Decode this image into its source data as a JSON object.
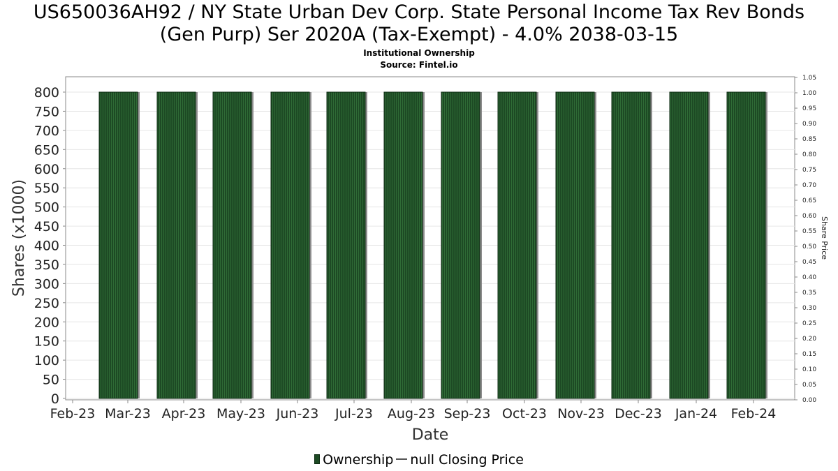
{
  "header": {
    "title_line1": "US650036AH92 / NY State Urban Dev Corp. State Personal Income Tax Rev Bonds",
    "title_line2": "(Gen Purp) Ser 2020A (Tax-Exempt) - 4.0% 2038-03-15",
    "subtitle": "Institutional Ownership",
    "source": "Source: Fintel.io"
  },
  "legend": {
    "ownership": "Ownership",
    "price": "null Closing Price"
  },
  "colors": {
    "bar_fill": "#1d4a24",
    "bar_stripe": "#2f6b36",
    "bar_shadow": "#8c8c8c",
    "grid": "#e6e6e6",
    "axis": "#888888"
  },
  "chart_data": {
    "type": "bar",
    "title": "US650036AH92 / NY State Urban Dev Corp. State Personal Income Tax Rev Bonds (Gen Purp) Ser 2020A (Tax-Exempt) - 4.0% 2038-03-15",
    "subtitle": "Institutional Ownership",
    "xlabel": "Date",
    "ylabel": "Shares (x1000)",
    "y2label": "Share Price",
    "x_tick_labels": [
      "Feb-23",
      "Mar-23",
      "Apr-23",
      "May-23",
      "Jun-23",
      "Jul-23",
      "Aug-23",
      "Sep-23",
      "Oct-23",
      "Nov-23",
      "Dec-23",
      "Jan-24",
      "Feb-24"
    ],
    "categories": [
      "Mar-23",
      "Apr-23",
      "May-23",
      "Jun-23",
      "Jul-23",
      "Aug-23",
      "Sep-23",
      "Oct-23",
      "Nov-23",
      "Dec-23",
      "Jan-24",
      "Feb-24"
    ],
    "series": [
      {
        "name": "Ownership",
        "values": [
          800,
          800,
          800,
          800,
          800,
          800,
          800,
          800,
          800,
          800,
          800,
          800
        ]
      }
    ],
    "ylim": [
      0,
      800
    ],
    "y_ticks": [
      0,
      50,
      100,
      150,
      200,
      250,
      300,
      350,
      400,
      450,
      500,
      550,
      600,
      650,
      700,
      750,
      800
    ],
    "y2lim": [
      0,
      1.05
    ],
    "y2_ticks": [
      "0.00",
      "0.05",
      "0.10",
      "0.15",
      "0.20",
      "0.25",
      "0.30",
      "0.35",
      "0.40",
      "0.45",
      "0.50",
      "0.55",
      "0.60",
      "0.65",
      "0.70",
      "0.75",
      "0.80",
      "0.85",
      "0.90",
      "0.95",
      "1.00",
      "1.05"
    ],
    "grid": true,
    "legend_position": "bottom"
  }
}
